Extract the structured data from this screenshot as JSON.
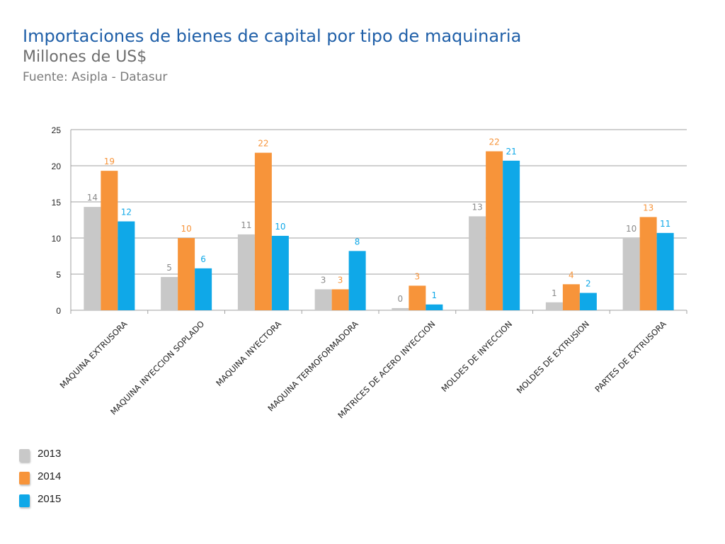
{
  "header": {
    "title": "Importaciones de bienes de capital por tipo de maquinaria",
    "subtitle": "Millones de US$",
    "source": "Fuente: Asipla - Datasur"
  },
  "colors": {
    "2013": "#c8c8c8",
    "2014": "#f7943a",
    "2015": "#0fa8e8",
    "label_2013": "#8a8a8a",
    "grid": "#a0a0a0",
    "axis_text": "#222222"
  },
  "chart_data": {
    "type": "bar",
    "title": "Importaciones de bienes de capital por tipo de maquinaria",
    "subtitle": "Millones de US$",
    "xlabel": "",
    "ylabel": "",
    "ylim": [
      0,
      25
    ],
    "yticks": [
      0,
      5,
      10,
      15,
      20,
      25
    ],
    "grid": true,
    "legend_position": "bottom-left",
    "categories": [
      "MAQUINA EXTRUSORA",
      "MAQUINA INYECCION SOPLADO",
      "MAQUINA INYECTORA",
      "MAQUINA TERMOFORMADORA",
      "MATRICES DE ACERO INYECCION",
      "MOLDES DE INYECCION",
      "MOLDES DE  EXTRUSION",
      "PARTES DE EXTRUSORA"
    ],
    "series": [
      {
        "name": "2013",
        "values": [
          14.3,
          4.6,
          10.5,
          2.9,
          0.3,
          13.0,
          1.1,
          10.0
        ],
        "labels": [
          "14",
          "5",
          "11",
          "3",
          "0",
          "13",
          "1",
          "10"
        ]
      },
      {
        "name": "2014",
        "values": [
          19.3,
          10.0,
          21.8,
          2.9,
          3.4,
          22.0,
          3.6,
          12.9
        ],
        "labels": [
          "19",
          "10",
          "22",
          "3",
          "3",
          "22",
          "4",
          "13"
        ]
      },
      {
        "name": "2015",
        "values": [
          12.3,
          5.8,
          10.3,
          8.2,
          0.8,
          20.7,
          2.4,
          10.7
        ],
        "labels": [
          "12",
          "6",
          "10",
          "8",
          "1",
          "21",
          "2",
          "11"
        ]
      }
    ]
  },
  "legend": [
    {
      "label": "2013",
      "color": "#c8c8c8"
    },
    {
      "label": "2014",
      "color": "#f7943a"
    },
    {
      "label": "2015",
      "color": "#0fa8e8"
    }
  ]
}
